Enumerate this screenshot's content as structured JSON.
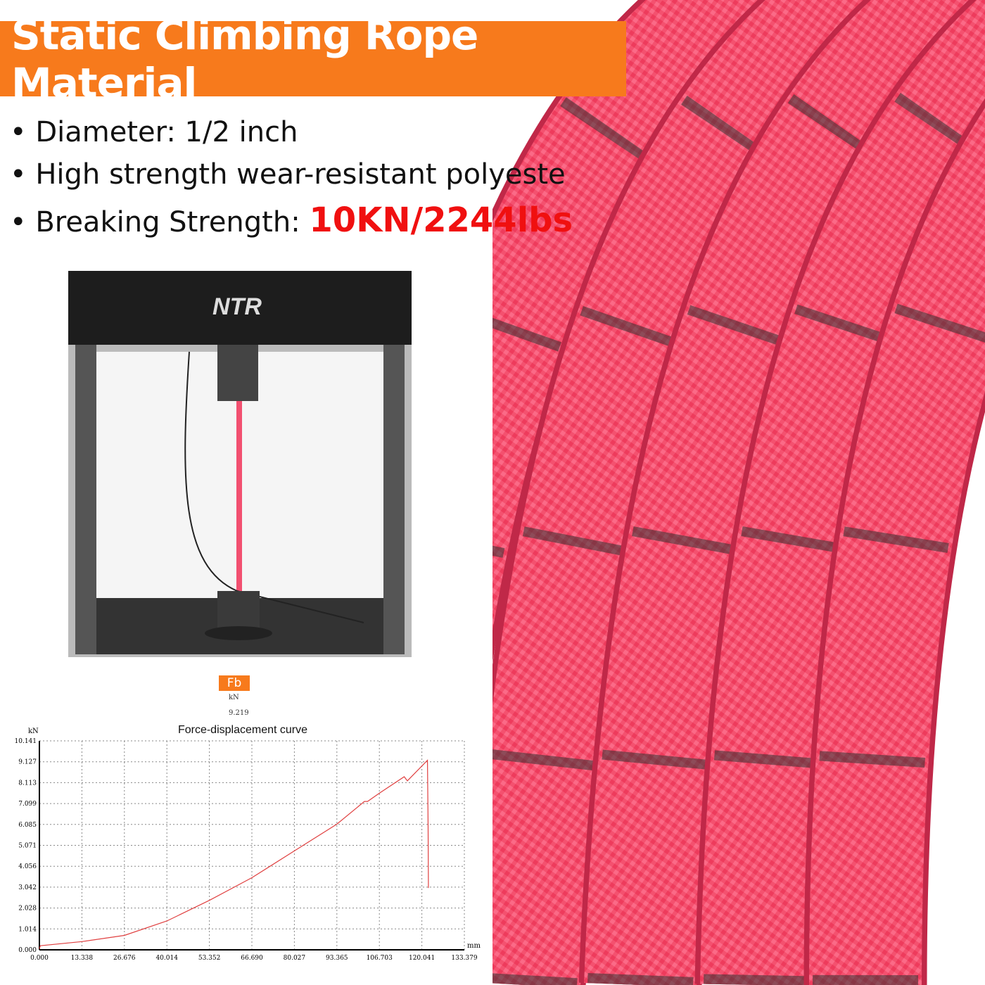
{
  "banner": {
    "title": "Static Climbing Rope Material",
    "color": "#f77a1c"
  },
  "bullets": [
    {
      "text": "Diameter: 1/2 inch"
    },
    {
      "text": "High strength wear-resistant polyeste"
    },
    {
      "text": "Breaking Strength: ",
      "highlight": "10KN/2244lbs",
      "highlight_color": "#f01010"
    }
  ],
  "machine": {
    "brand": "NTR"
  },
  "readout": {
    "label": "Fb",
    "unit": "kN",
    "value": "9.219"
  },
  "chart_data": {
    "type": "line",
    "title": "Force-displacement curve",
    "xlabel": "mm",
    "ylabel": "kN",
    "xlim": [
      0,
      133.379
    ],
    "ylim": [
      0,
      10.141
    ],
    "xticks": [
      "0.000",
      "13.338",
      "26.676",
      "40.014",
      "53.352",
      "66.690",
      "80.027",
      "93.365",
      "106.703",
      "120.041",
      "133.379"
    ],
    "yticks": [
      "0.000",
      "1.014",
      "2.028",
      "3.042",
      "4.056",
      "5.071",
      "6.085",
      "7.099",
      "8.113",
      "9.127",
      "10.141"
    ],
    "grid": true,
    "color": "#e04040",
    "x": [
      0,
      0.3,
      13.338,
      26.676,
      40.014,
      53.352,
      66.69,
      80.027,
      93.365,
      102,
      103,
      106.7,
      114.5,
      115.5,
      121.8,
      122,
      122.1
    ],
    "y": [
      0.05,
      0.2,
      0.4,
      0.7,
      1.4,
      2.4,
      3.5,
      4.8,
      6.1,
      7.2,
      7.2,
      7.6,
      8.4,
      8.2,
      9.2,
      6,
      3.0
    ]
  }
}
